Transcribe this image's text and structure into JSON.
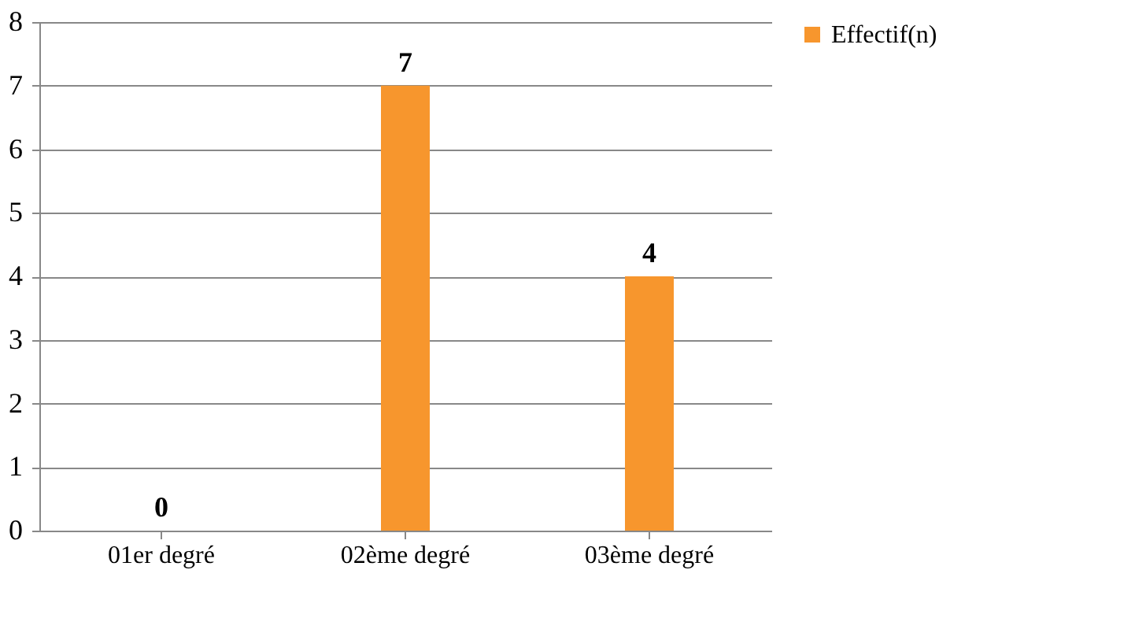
{
  "chart_data": {
    "type": "bar",
    "categories": [
      "01er degré",
      "02ème degré",
      "03ème degré"
    ],
    "series": [
      {
        "name": "Effectif(n)",
        "color": "#f7962d",
        "values": [
          0,
          7,
          4
        ]
      }
    ],
    "ylim": [
      0,
      8
    ],
    "yticks": [
      0,
      1,
      2,
      3,
      4,
      5,
      6,
      7,
      8
    ],
    "grid": "y",
    "legend": "right",
    "data_labels": true
  }
}
